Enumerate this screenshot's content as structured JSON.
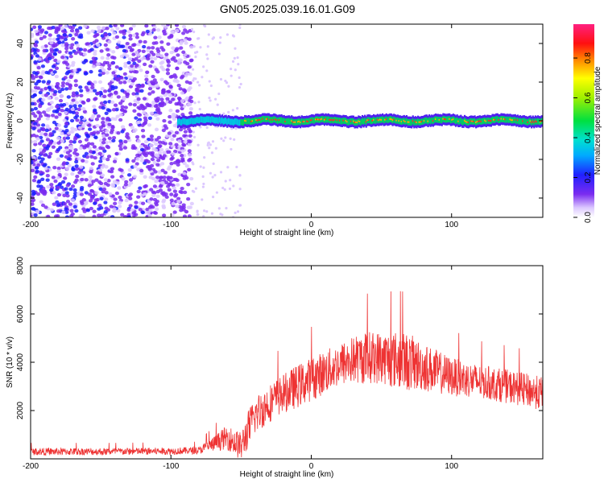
{
  "title": "GN05.2025.039.16.01.G09",
  "chart_data": [
    {
      "type": "heatmap",
      "xlabel": "Height of straight line (km)",
      "ylabel": "Frequency (Hz)",
      "xlim": [
        -200,
        165
      ],
      "ylim": [
        -50,
        50
      ],
      "x_ticks": [
        -200,
        -100,
        0,
        100
      ],
      "y_ticks": [
        -40,
        -20,
        0,
        20,
        40
      ],
      "colorbar": {
        "label": "Normalized spectral amplitude",
        "range": [
          0,
          0.97
        ],
        "ticks": [
          "0.0",
          "0.2",
          "0.4",
          "0.6",
          "0.8"
        ],
        "colormap": "rainbow (violet to red to pink)"
      },
      "description_values": {
        "noise_region_km": [
          -200,
          -85
        ],
        "signal_start_km": -95,
        "signal_frequency_hz": 0
      },
      "grid": false
    },
    {
      "type": "line",
      "xlabel": "Height of straight line (km)",
      "ylabel": "SNR (10 * v/v)",
      "xlim": [
        -200,
        165
      ],
      "ylim": [
        0,
        8000
      ],
      "x_ticks": [
        -200,
        -100,
        0,
        100
      ],
      "y_ticks": [
        2000,
        4000,
        6000,
        8000
      ],
      "color": "#ee3333",
      "envelope": {
        "x": [
          -200,
          -150,
          -100,
          -80,
          -70,
          -60,
          -50,
          -45,
          -40,
          -30,
          -20,
          -10,
          0,
          10,
          20,
          30,
          40,
          50,
          60,
          70,
          80,
          90,
          100,
          120,
          140,
          165
        ],
        "mean": [
          300,
          300,
          320,
          350,
          600,
          900,
          500,
          1200,
          1800,
          2300,
          2700,
          3000,
          3300,
          3600,
          3900,
          4100,
          4200,
          4200,
          4100,
          4000,
          3800,
          3600,
          3400,
          3200,
          3000,
          2700
        ],
        "spread": [
          150,
          150,
          150,
          150,
          300,
          500,
          600,
          800,
          800,
          800,
          800,
          900,
          900,
          900,
          900,
          1000,
          1100,
          1100,
          1200,
          1200,
          1000,
          900,
          800,
          700,
          700,
          700
        ]
      },
      "grid": false
    }
  ]
}
